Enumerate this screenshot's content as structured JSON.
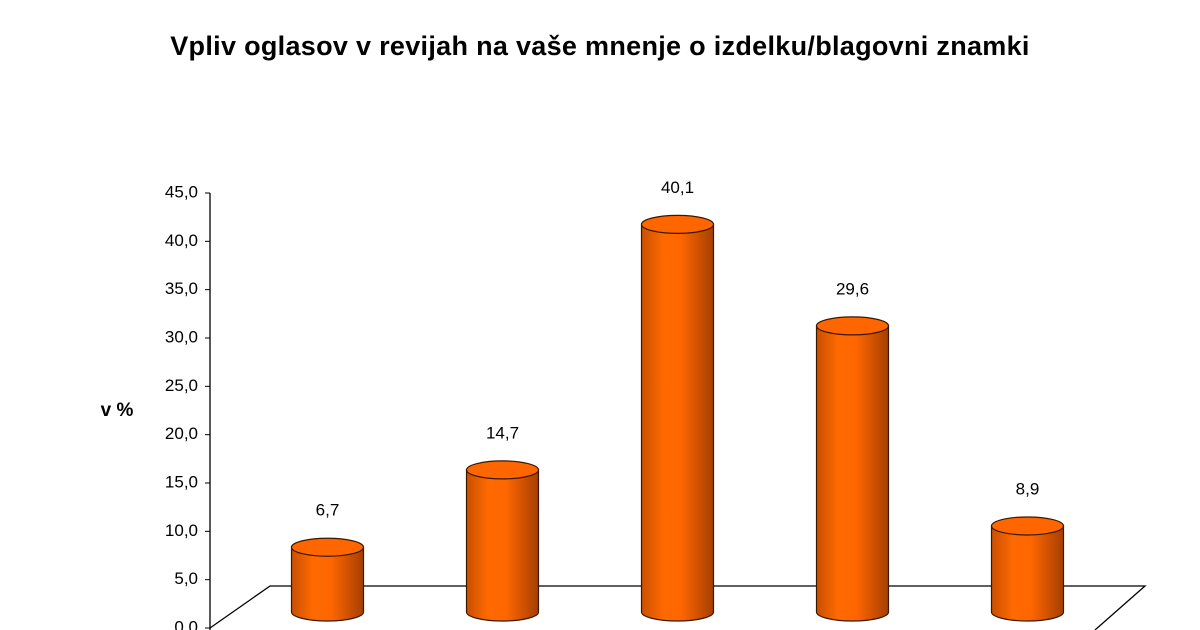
{
  "chart_data": {
    "type": "bar",
    "title": "Vpliv oglasov v revijah na vaše mnenje o izdelku/blagovni znamki",
    "y_label": "v %",
    "categories": [
      null,
      null,
      null,
      null,
      null
    ],
    "values": [
      6.7,
      14.7,
      40.1,
      29.6,
      8.9
    ],
    "value_labels": [
      "6,7",
      "14,7",
      "40,1",
      "29,6",
      "8,9"
    ],
    "color": "#ff6600",
    "ylim": [
      0,
      45
    ],
    "yticks": [
      {
        "value": 0,
        "label": "0,0"
      },
      {
        "value": 5,
        "label": "5,0"
      },
      {
        "value": 10,
        "label": "10,0"
      },
      {
        "value": 15,
        "label": "15,0"
      },
      {
        "value": 20,
        "label": "20,0"
      },
      {
        "value": 25,
        "label": "25,0"
      },
      {
        "value": 30,
        "label": "30,0"
      },
      {
        "value": 35,
        "label": "35,0"
      },
      {
        "value": 40,
        "label": "40,0"
      },
      {
        "value": 45,
        "label": "45,0"
      }
    ],
    "grid": false
  }
}
